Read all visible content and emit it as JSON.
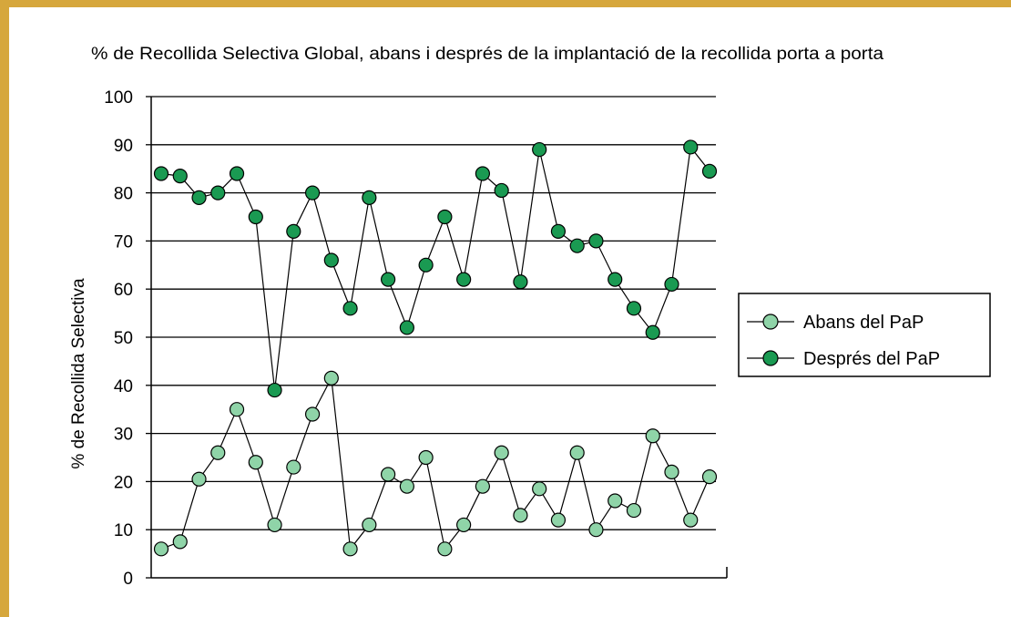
{
  "chart_data": {
    "type": "line",
    "title": "% de Recollida Selectiva Global, abans i després de la implantació de la recollida porta a porta",
    "xlabel": "",
    "ylabel": "% de Recollida Selectiva",
    "ylim": [
      0,
      100
    ],
    "yticks": [
      0,
      10,
      20,
      30,
      40,
      50,
      60,
      70,
      80,
      90,
      100
    ],
    "grid": true,
    "legend_position": "right",
    "x": [
      1,
      2,
      3,
      4,
      5,
      6,
      7,
      8,
      9,
      10,
      11,
      12,
      13,
      14,
      15,
      16,
      17,
      18,
      19,
      20,
      21,
      22,
      23,
      24,
      25,
      26,
      27,
      28,
      29,
      30
    ],
    "series": [
      {
        "name": "Abans del PaP",
        "color": "#8fd4a8",
        "values": [
          6,
          7.5,
          20.5,
          26,
          35,
          24,
          11,
          23,
          34,
          41.5,
          6,
          11,
          21.5,
          19,
          25,
          6,
          11,
          19,
          26,
          13,
          18.5,
          12,
          26,
          10,
          16,
          14,
          29.5,
          22,
          12,
          21
        ]
      },
      {
        "name": "Després del PaP",
        "color": "#1a9a52",
        "values": [
          84,
          83.5,
          79,
          80,
          84,
          75,
          39,
          72,
          80,
          66,
          56,
          79,
          62,
          52,
          65,
          75,
          62,
          84,
          80.5,
          61.5,
          89,
          72,
          69,
          70,
          62,
          56,
          51,
          61,
          89.5,
          84.5
        ]
      }
    ]
  }
}
